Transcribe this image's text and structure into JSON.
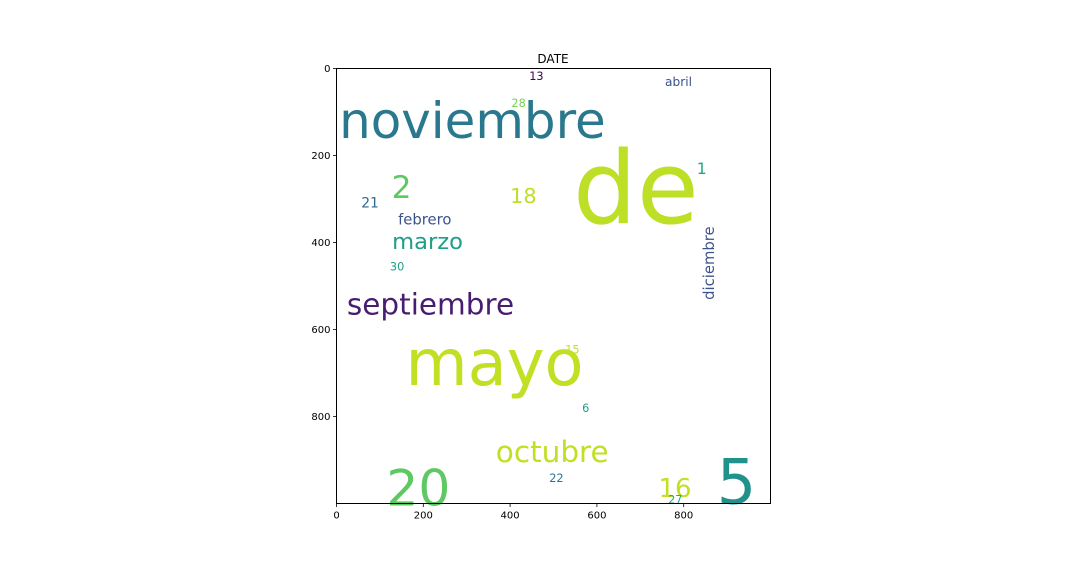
{
  "chart_data": {
    "type": "wordcloud",
    "title": "DATE",
    "xlim": [
      0,
      1000
    ],
    "ylim": [
      1000,
      0
    ],
    "x_ticks": [
      0,
      200,
      400,
      600,
      800
    ],
    "y_ticks": [
      0,
      200,
      400,
      600,
      800
    ],
    "words": [
      {
        "text": "de",
        "x": 545,
        "y": 355,
        "size": 232,
        "color": "#bddf26",
        "rotate": false
      },
      {
        "text": "noviembre",
        "x": 6,
        "y": 160,
        "size": 115,
        "color": "#2a788e",
        "rotate": false
      },
      {
        "text": "mayo",
        "x": 159,
        "y": 728,
        "size": 147,
        "color": "#c2df23",
        "rotate": false
      },
      {
        "text": "5",
        "x": 876,
        "y": 1000,
        "size": 143,
        "color": "#21918c",
        "rotate": false
      },
      {
        "text": "20",
        "x": 115,
        "y": 1005,
        "size": 116,
        "color": "#5ec962",
        "rotate": false
      },
      {
        "text": "septiembre",
        "x": 24,
        "y": 565,
        "size": 68,
        "color": "#481d6f",
        "rotate": false
      },
      {
        "text": "octubre",
        "x": 367,
        "y": 905,
        "size": 68,
        "color": "#c2df23",
        "rotate": false
      },
      {
        "text": "marzo",
        "x": 128,
        "y": 415,
        "size": 52,
        "color": "#1f9e89",
        "rotate": false
      },
      {
        "text": "2",
        "x": 127,
        "y": 298,
        "size": 72,
        "color": "#5ec962",
        "rotate": false
      },
      {
        "text": "16",
        "x": 742,
        "y": 985,
        "size": 60,
        "color": "#c2df23",
        "rotate": false
      },
      {
        "text": "18",
        "x": 400,
        "y": 309,
        "size": 48,
        "color": "#bddf26",
        "rotate": false
      },
      {
        "text": "diciembre",
        "x": 870,
        "y": 532,
        "size": 34,
        "color": "#3b528b",
        "rotate": true
      },
      {
        "text": "febrero",
        "x": 142,
        "y": 359,
        "size": 34,
        "color": "#3b528b",
        "rotate": false
      },
      {
        "text": "21",
        "x": 57,
        "y": 320,
        "size": 32,
        "color": "#31688e",
        "rotate": false
      },
      {
        "text": "1",
        "x": 830,
        "y": 243,
        "size": 36,
        "color": "#22a884",
        "rotate": false
      },
      {
        "text": "abril",
        "x": 757,
        "y": 40,
        "size": 28,
        "color": "#3b528b",
        "rotate": false
      },
      {
        "text": "13",
        "x": 444,
        "y": 27,
        "size": 26,
        "color": "#440154",
        "rotate": false
      },
      {
        "text": "28",
        "x": 403,
        "y": 88,
        "size": 26,
        "color": "#7ad151",
        "rotate": false
      },
      {
        "text": "30",
        "x": 123,
        "y": 464,
        "size": 26,
        "color": "#1f9e89",
        "rotate": false
      },
      {
        "text": "15",
        "x": 527,
        "y": 655,
        "size": 26,
        "color": "#c2df23",
        "rotate": false
      },
      {
        "text": "6",
        "x": 566,
        "y": 790,
        "size": 26,
        "color": "#1f9e89",
        "rotate": false
      },
      {
        "text": "22",
        "x": 490,
        "y": 950,
        "size": 26,
        "color": "#2a788e",
        "rotate": false
      },
      {
        "text": "27",
        "x": 764,
        "y": 1000,
        "size": 26,
        "color": "#22a884",
        "rotate": false
      }
    ]
  }
}
